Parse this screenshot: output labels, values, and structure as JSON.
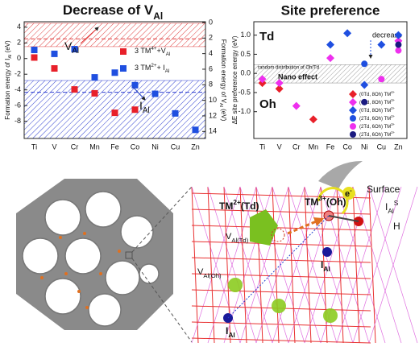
{
  "chart_data": [
    {
      "type": "scatter",
      "title": [
        {
          "t": "Decrease of V"
        },
        {
          "t": "Al",
          "s": "sub"
        }
      ],
      "ylabel": [
        {
          "t": "Formation energy of I"
        },
        {
          "t": "Al",
          "s": "sub"
        },
        {
          "t": " (eV)"
        }
      ],
      "y2label": [
        {
          "t": "Formation energy of V"
        },
        {
          "t": "Al",
          "s": "sub"
        },
        {
          "t": " (eV)"
        }
      ],
      "categories": [
        "Ti",
        "V",
        "Cr",
        "Mn",
        "Fe",
        "Co",
        "Ni",
        "Cu",
        "Zn"
      ],
      "ylim": [
        -10.2,
        4.7
      ],
      "yticks": [
        4,
        2,
        0,
        -2,
        -4,
        -6,
        -8
      ],
      "y2lim": [
        14.9,
        -0.1
      ],
      "y2ticks": [
        0,
        2,
        4,
        6,
        8,
        10,
        12,
        14
      ],
      "bands": [
        {
          "color": "#e04040",
          "axis": "y2",
          "range": [
            0.1,
            3.1
          ],
          "line": 2.1
        },
        {
          "color": "#3040d0",
          "axis": "y",
          "range": [
            -2.8,
            -10.2
          ],
          "line": -4.3
        }
      ],
      "annotations": [
        {
          "text": [
            {
              "t": "V"
            },
            {
              "t": "Al",
              "s": "sub"
            }
          ],
          "color": "#e03030"
        },
        {
          "text": [
            {
              "t": "I"
            },
            {
              "t": "Al",
              "s": "sub"
            }
          ],
          "color": "#2040c0"
        }
      ],
      "series": [
        {
          "name": [
            {
              "t": "3 TM"
            },
            {
              "t": "4+",
              "s": "sup"
            },
            {
              "t": "+V"
            },
            {
              "t": "Al",
              "s": "sub"
            }
          ],
          "color": "#e8202a",
          "axis": "y2",
          "marker": "square",
          "values": [
            4.5,
            5.9,
            8.6,
            9.1,
            11.6,
            11.2,
            null,
            null,
            null
          ]
        },
        {
          "name": [
            {
              "t": "3 TM"
            },
            {
              "t": "2+",
              "s": "sup"
            },
            {
              "t": "+ I"
            },
            {
              "t": "Al",
              "s": "sub"
            }
          ],
          "color": "#1f4fe0",
          "axis": "y",
          "marker": "square",
          "values": [
            1.1,
            0.6,
            1.2,
            -2.4,
            -1.8,
            -3.4,
            -4.5,
            -7.0,
            -9.1
          ]
        }
      ]
    },
    {
      "type": "scatter",
      "title": "Site preference",
      "ylabel": "ΔE site preference energy (eV)",
      "categories": [
        "Ti",
        "V",
        "Cr",
        "Mn",
        "Fe",
        "Co",
        "Ni",
        "Cu",
        "Zn"
      ],
      "ylim": [
        -1.7,
        1.35
      ],
      "yticks": [
        {
          "value": 1,
          "label": "1.0"
        },
        0.5,
        {
          "value": 0,
          "label": "0.0"
        },
        -0.5,
        {
          "value": -1,
          "label": "-1.0"
        }
      ],
      "shaded_range": [
        -0.25,
        0.23
      ],
      "annotations": [
        "Td",
        "Oh",
        "decrease",
        "random distribution of Oh/Td",
        "Nano effect"
      ],
      "series": [
        {
          "name": [
            {
              "t": "(0Td, 8Oh) TM"
            },
            {
              "t": "4+",
              "s": "sup"
            }
          ],
          "color": "#e8202a",
          "marker": "diamond",
          "values": [
            -0.25,
            -0.4,
            null,
            -1.2,
            null,
            null,
            null,
            null,
            null
          ]
        },
        {
          "name": [
            {
              "t": "(0Td, 8Oh) TM"
            },
            {
              "t": "3+",
              "s": "sup"
            }
          ],
          "color": "#ee30ee",
          "marker": "diamond",
          "values": [
            -0.15,
            -0.25,
            -0.85,
            null,
            0.4,
            null,
            null,
            null,
            0.85
          ]
        },
        {
          "name": [
            {
              "t": "(0Td, 8Oh) TM"
            },
            {
              "t": "2+",
              "s": "sup"
            }
          ],
          "color": "#1f4fe0",
          "marker": "diamond",
          "values": [
            null,
            null,
            null,
            null,
            0.75,
            1.05,
            -0.3,
            0.75,
            1.0
          ]
        },
        {
          "name": [
            {
              "t": "(2Td, 6Oh) TM"
            },
            {
              "t": "2+",
              "s": "sup"
            }
          ],
          "color": "#1f4fe0",
          "marker": "circle",
          "values": [
            null,
            null,
            null,
            null,
            null,
            null,
            0.25,
            null,
            null
          ]
        },
        {
          "name": [
            {
              "t": "(2Td, 6Oh) TM"
            },
            {
              "t": "3+",
              "s": "sup"
            }
          ],
          "color": "#ee30ee",
          "marker": "circle",
          "values": [
            null,
            null,
            null,
            null,
            null,
            null,
            null,
            -0.15,
            0.6
          ]
        },
        {
          "name": [
            {
              "t": "(2Td, 6Oh) TM"
            },
            {
              "t": "2+",
              "s": "sup"
            }
          ],
          "color": "#1a1a80",
          "marker": "circle",
          "values": [
            null,
            null,
            null,
            null,
            null,
            null,
            -0.75,
            null,
            0.75
          ]
        }
      ]
    }
  ],
  "diagram": {
    "surface": "Surface",
    "electron": [
      {
        "t": "e"
      },
      {
        "t": "-",
        "s": "sup"
      }
    ],
    "surface_interstitial": [
      {
        "t": "I"
      },
      {
        "t": "Al",
        "s": "sub"
      },
      {
        "t": "S",
        "s": "sup"
      }
    ],
    "hydrogen": "H",
    "tm_td": [
      {
        "t": "TM"
      },
      {
        "t": "2+",
        "s": "sup"
      },
      {
        "t": "(Td)"
      }
    ],
    "tm_oh": [
      {
        "t": "TM"
      },
      {
        "t": "3+",
        "s": "sup"
      },
      {
        "t": "(Oh)"
      }
    ],
    "vacancy_td": [
      {
        "t": "V"
      },
      {
        "t": "Al(Td)",
        "s": "sub"
      }
    ],
    "vacancy_oh": [
      {
        "t": "V"
      },
      {
        "t": "Al(Oh)",
        "s": "sub"
      }
    ],
    "interstitial_1": [
      {
        "t": "I"
      },
      {
        "t": "Al",
        "s": "sub"
      }
    ],
    "interstitial_2": [
      {
        "t": "I"
      },
      {
        "t": "Al",
        "s": "sub"
      }
    ]
  }
}
